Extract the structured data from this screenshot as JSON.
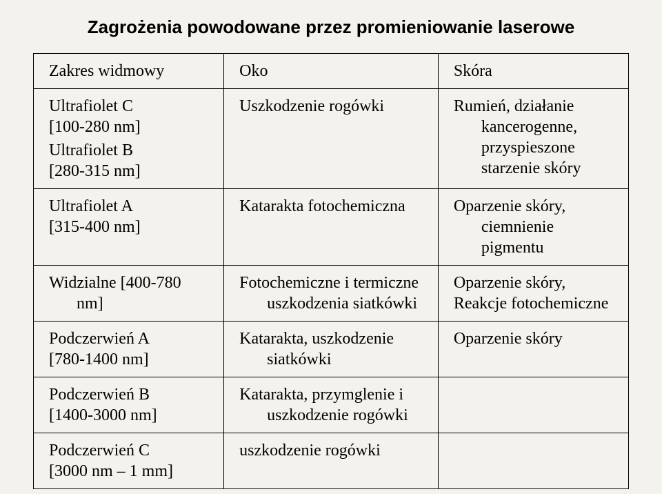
{
  "title": "Zagrożenia powodowane przez promieniowanie laserowe",
  "table": {
    "header": {
      "range": "Zakres widmowy",
      "eye": "Oko",
      "skin": "Skóra"
    },
    "rows": [
      {
        "range_line1": "Ultrafiolet C",
        "range_line2": "[100-280 nm]",
        "range_line3": "Ultrafiolet B",
        "range_line4": "[280-315 nm]",
        "eye": "Uszkodzenie rogówki",
        "skin_line1": "Rumień, działanie",
        "skin_line2": "kancerogenne,",
        "skin_line3": "przyspieszone",
        "skin_line4": "starzenie skóry"
      },
      {
        "range_line1": "Ultrafiolet A",
        "range_line2": "[315-400 nm]",
        "eye": "Katarakta fotochemiczna",
        "skin_line1": "Oparzenie skóry,",
        "skin_line2": "ciemnienie pigmentu"
      },
      {
        "range_line1": "Widzialne [400-780",
        "range_line2": "nm]",
        "eye_line1": "Fotochemiczne i termiczne",
        "eye_line2": "uszkodzenia siatkówki",
        "skin_line1": "Oparzenie skóry,",
        "skin_line2": "Reakcje fotochemiczne"
      },
      {
        "range_line1": "Podczerwień A",
        "range_line2": "[780-1400 nm]",
        "eye_line1": "Katarakta, uszkodzenie",
        "eye_line2": "siatkówki",
        "skin": "Oparzenie skóry"
      },
      {
        "range_line1": "Podczerwień B",
        "range_line2": "[1400-3000 nm]",
        "eye_line1": "Katarakta, przymglenie i",
        "eye_line2": "uszkodzenie rogówki",
        "skin": ""
      },
      {
        "range_line1": "Podczerwień C",
        "range_line2": "[3000 nm – 1 mm]",
        "eye": "uszkodzenie rogówki",
        "skin": ""
      }
    ]
  }
}
